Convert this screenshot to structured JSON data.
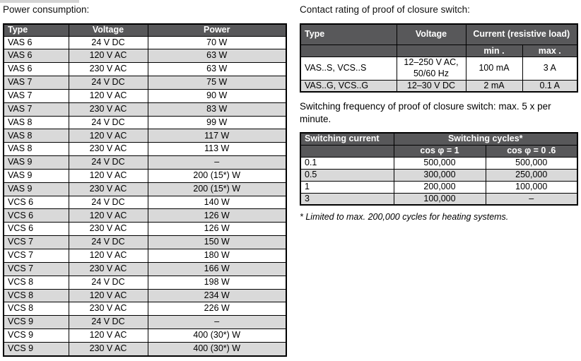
{
  "colors": {
    "header_bg": "#58585a",
    "row_alt_bg": "#d9d9d9",
    "border": "#000000",
    "page_bg": "#ffffff"
  },
  "power_section": {
    "title": "Power consumption:",
    "table": {
      "headers": [
        "Type",
        "Voltage",
        "Power"
      ],
      "rows": [
        [
          "VAS 6",
          "24 V DC",
          "70 W"
        ],
        [
          "VAS 6",
          "120 V AC",
          "63 W"
        ],
        [
          "VAS 6",
          "230 V AC",
          "63 W"
        ],
        [
          "VAS 7",
          "24 V DC",
          "75 W"
        ],
        [
          "VAS 7",
          "120 V AC",
          "90 W"
        ],
        [
          "VAS 7",
          "230 V AC",
          "83 W"
        ],
        [
          "VAS 8",
          "24 V DC",
          "99 W"
        ],
        [
          "VAS 8",
          "120 V AC",
          "117 W"
        ],
        [
          "VAS 8",
          "230 V AC",
          "113 W"
        ],
        [
          "VAS 9",
          "24 V DC",
          "–"
        ],
        [
          "VAS 9",
          "120 V AC",
          "200 (15*) W"
        ],
        [
          "VAS 9",
          "230 V AC",
          "200 (15*) W"
        ],
        [
          "VCS 6",
          "24 V DC",
          "140 W"
        ],
        [
          "VCS 6",
          "120 V AC",
          "126 W"
        ],
        [
          "VCS 6",
          "230 V AC",
          "126 W"
        ],
        [
          "VCS 7",
          "24 V DC",
          "150 W"
        ],
        [
          "VCS 7",
          "120 V AC",
          "180 W"
        ],
        [
          "VCS 7",
          "230 V AC",
          "166 W"
        ],
        [
          "VCS 8",
          "24 V DC",
          "198 W"
        ],
        [
          "VCS 8",
          "120 V AC",
          "234 W"
        ],
        [
          "VCS 8",
          "230 V AC",
          "226 W"
        ],
        [
          "VCS 9",
          "24 V DC",
          "–"
        ],
        [
          "VCS 9",
          "120 V AC",
          "400 (30*) W"
        ],
        [
          "VCS 9",
          "230 V AC",
          "400 (30*) W"
        ]
      ]
    }
  },
  "contact_section": {
    "title": "Contact rating of proof of closure switch:",
    "table": {
      "col_type": "Type",
      "col_voltage": "Voltage",
      "col_current_group": "Current (resistive load)",
      "col_min": "min .",
      "col_max": "max .",
      "rows": [
        [
          "VAS..S, VCS..S",
          "12–250 V AC, 50/60 Hz",
          "100 mA",
          "3 A"
        ],
        [
          "VAS..G, VCS..G",
          "12–30 V DC",
          "2 mA",
          "0.1 A"
        ]
      ]
    },
    "frequency_note": "Switching frequency of proof of closure switch: max. 5 x per minute.",
    "cycles_table": {
      "col_current": "Switching current",
      "col_cycles_group": "Switching cycles*",
      "col_cos1": "cos φ = 1",
      "col_cos06": "cos φ = 0 .6",
      "rows": [
        [
          "0.1",
          "500,000",
          "500,000"
        ],
        [
          "0.5",
          "300,000",
          "250,000"
        ],
        [
          "1",
          "200,000",
          "100,000"
        ],
        [
          "3",
          "100,000",
          "–"
        ]
      ]
    },
    "footnote": "* Limited to max. 200,000 cycles for heating systems."
  }
}
